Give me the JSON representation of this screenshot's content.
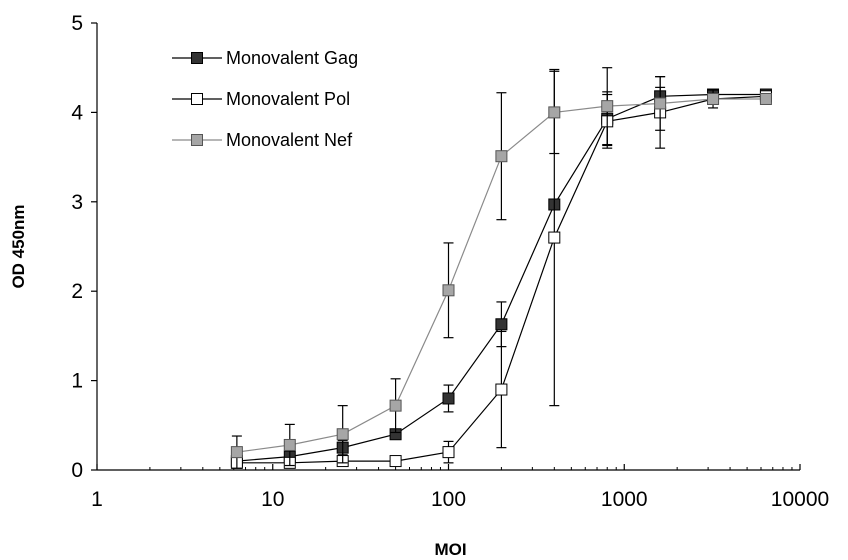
{
  "chart_data": {
    "type": "line",
    "xlabel": "MOI",
    "ylabel": "OD 450nm",
    "x_scale": "log",
    "xlim": [
      1,
      10000
    ],
    "ylim": [
      0,
      5
    ],
    "x_ticks": [
      1,
      10,
      100,
      1000,
      10000
    ],
    "x_tick_labels": [
      "1",
      "10",
      "100",
      "1000",
      "10000"
    ],
    "y_ticks": [
      0,
      1,
      2,
      3,
      4,
      5
    ],
    "y_tick_labels": [
      "0",
      "1",
      "2",
      "3",
      "4",
      "5"
    ],
    "grid": false,
    "legend_position": "top-left",
    "x": [
      6.25,
      12.5,
      25,
      50,
      100,
      200,
      400,
      800,
      1600,
      3200,
      6400
    ],
    "series": [
      {
        "name": "Monovalent Gag",
        "marker": "filled-square",
        "line_color": "#000000",
        "marker_fill": "#333333",
        "values": [
          0.1,
          0.15,
          0.25,
          0.4,
          0.8,
          1.63,
          2.97,
          3.93,
          4.18,
          4.2,
          4.2
        ],
        "errors": [
          0.05,
          0.05,
          0.08,
          0.05,
          0.15,
          0.25,
          0.03,
          0.3,
          0.1,
          0.05,
          0.05
        ]
      },
      {
        "name": "Monovalent Pol",
        "marker": "open-square",
        "line_color": "#000000",
        "marker_fill": "#ffffff",
        "values": [
          0.08,
          0.08,
          0.1,
          0.1,
          0.2,
          0.9,
          2.6,
          3.9,
          4.0,
          4.15,
          4.18
        ],
        "errors": [
          0.03,
          0.03,
          0.03,
          0.03,
          0.12,
          0.65,
          1.88,
          0.3,
          0.4,
          0.1,
          0.05
        ]
      },
      {
        "name": "Monovalent Nef",
        "marker": "gray-square",
        "line_color": "#8a8a8a",
        "marker_fill": "#a6a6a6",
        "values": [
          0.2,
          0.28,
          0.4,
          0.72,
          2.01,
          3.51,
          4.0,
          4.07,
          4.1,
          4.15,
          4.15
        ],
        "errors": [
          0.18,
          0.23,
          0.32,
          0.3,
          0.53,
          0.71,
          0.46,
          0.43,
          0.3,
          0.05,
          0.05
        ]
      }
    ]
  }
}
